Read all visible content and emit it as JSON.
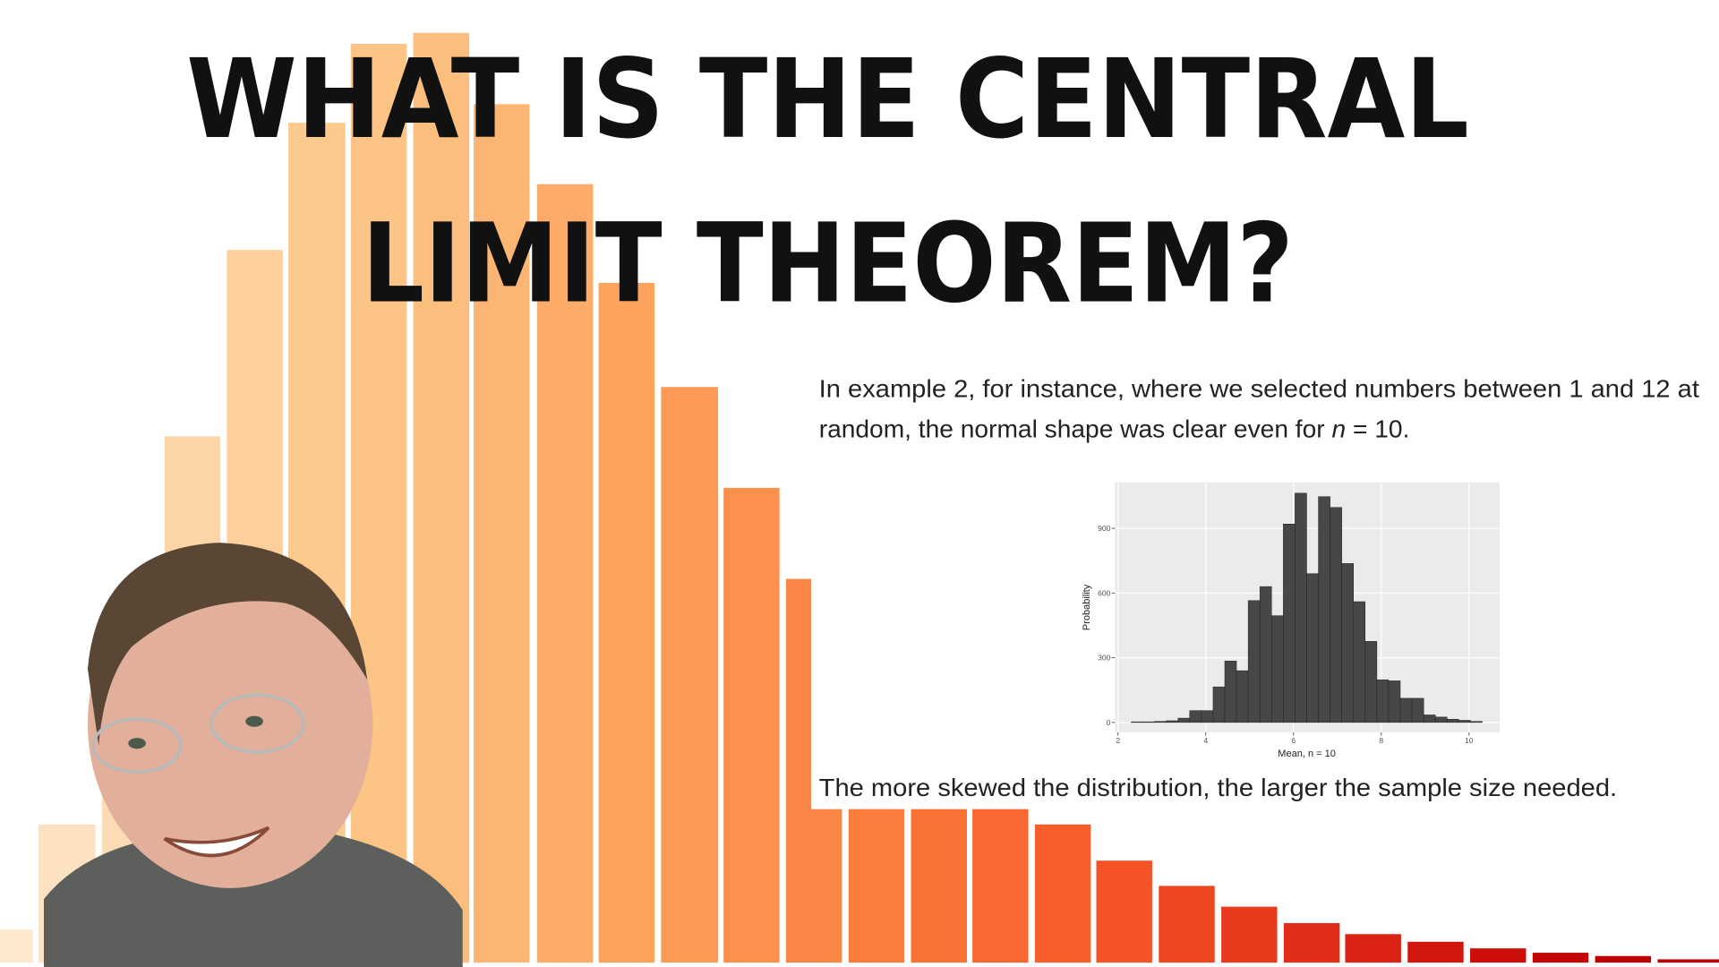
{
  "title": {
    "line1": "WHAT IS THE CENTRAL",
    "line2": "LIMIT THEOREM?"
  },
  "paragraph": {
    "line1": "In example 2, for instance, where we selected numbers between 1 and 12 at",
    "line2": "random, the normal shape was clear even for",
    "variable": "n",
    "equation": "= 10."
  },
  "closing": "The more skewed the distribution, the larger the sample size needed.",
  "chart_data": {
    "type": "histogram",
    "x_label": "Mean, n = 10",
    "y_label": "Probability",
    "bins": [
      2.3,
      2.567,
      2.833,
      3.1,
      3.367,
      3.633,
      3.9,
      4.167,
      4.433,
      4.7,
      4.967,
      5.233,
      5.5,
      5.767,
      6.033,
      6.3,
      6.567,
      6.833,
      7.1,
      7.367,
      7.633,
      7.9,
      8.167,
      8.433,
      8.7,
      8.967,
      9.233,
      9.5,
      9.767,
      10.033,
      10.3
    ],
    "values": [
      3,
      3,
      5,
      8,
      20,
      55,
      55,
      165,
      285,
      240,
      565,
      630,
      495,
      920,
      1063,
      690,
      1047,
      997,
      737,
      560,
      376,
      198,
      193,
      112,
      112,
      35,
      25,
      15,
      10,
      5
    ],
    "color": "#474747",
    "xlim": [
      1.93,
      10.7
    ],
    "ylim": [
      -46,
      1113
    ],
    "xticks": [
      2,
      4,
      6,
      8,
      10
    ],
    "yticks": [
      0,
      300,
      600,
      900
    ],
    "grid": true
  }
}
